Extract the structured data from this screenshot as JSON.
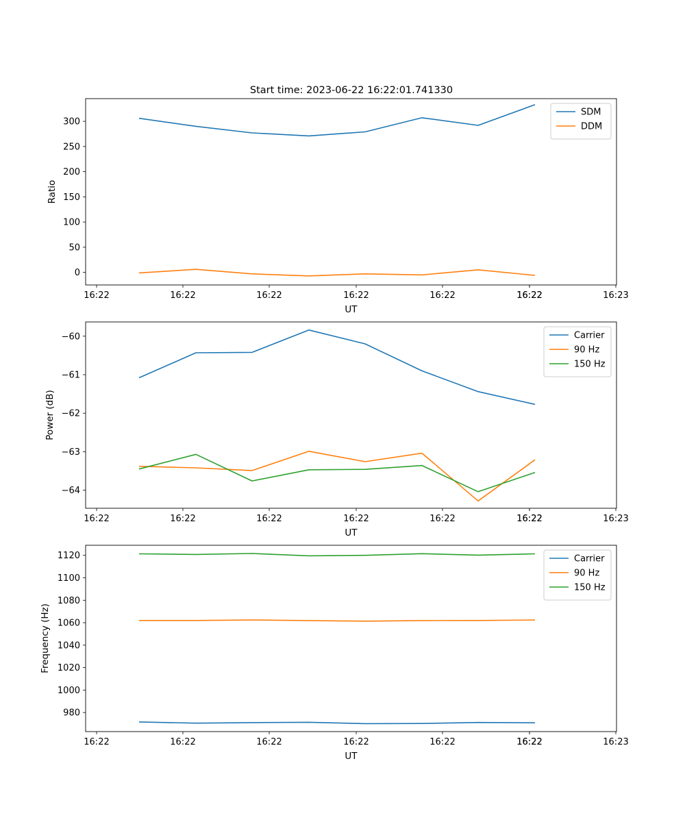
{
  "figure_title": "Start time: 2023-06-22 16:22:01.741330",
  "colors": {
    "blue": "#1f77b4",
    "orange": "#ff7f0e",
    "green": "#2ca02c"
  },
  "chart_data": [
    {
      "type": "line",
      "title": "Start time: 2023-06-22 16:22:01.741330",
      "xlabel": "UT",
      "ylabel": "Ratio",
      "x_tick_labels": [
        "16:22",
        "16:22",
        "16:22",
        "16:22",
        "16:22",
        "16:22",
        "16:22",
        "16:23"
      ],
      "y_ticks": [
        0,
        50,
        100,
        150,
        200,
        250,
        300
      ],
      "ylim": [
        -25,
        345
      ],
      "legend_position": "upper right",
      "grid": false,
      "series": [
        {
          "name": "SDM",
          "color": "#1f77b4",
          "values": [
            306,
            290,
            277,
            271,
            279,
            307,
            292,
            333
          ]
        },
        {
          "name": "DDM",
          "color": "#ff7f0e",
          "values": [
            -1,
            6,
            -3,
            -7,
            -3,
            -5,
            5,
            -6
          ]
        }
      ]
    },
    {
      "type": "line",
      "title": "",
      "xlabel": "UT",
      "ylabel": "Power (dB)",
      "x_tick_labels": [
        "16:22",
        "16:22",
        "16:22",
        "16:22",
        "16:22",
        "16:22",
        "16:22",
        "16:23"
      ],
      "y_ticks": [
        -64,
        -63,
        -62,
        -61,
        -60
      ],
      "ylim": [
        -64.47,
        -59.63
      ],
      "legend_position": "upper right",
      "grid": false,
      "series": [
        {
          "name": "Carrier",
          "color": "#1f77b4",
          "values": [
            -61.08,
            -60.43,
            -60.42,
            -59.84,
            -60.2,
            -60.9,
            -61.44,
            -61.77
          ]
        },
        {
          "name": "90 Hz",
          "color": "#ff7f0e",
          "values": [
            -63.38,
            -63.42,
            -63.49,
            -62.99,
            -63.26,
            -63.04,
            -64.28,
            -63.21
          ]
        },
        {
          "name": "150 Hz",
          "color": "#2ca02c",
          "values": [
            -63.45,
            -63.07,
            -63.76,
            -63.47,
            -63.46,
            -63.36,
            -64.04,
            -63.54
          ]
        }
      ]
    },
    {
      "type": "line",
      "title": "",
      "xlabel": "UT",
      "ylabel": "Frequency (Hz)",
      "x_tick_labels": [
        "16:22",
        "16:22",
        "16:22",
        "16:22",
        "16:22",
        "16:22",
        "16:22",
        "16:23"
      ],
      "y_ticks": [
        980,
        1000,
        1020,
        1040,
        1060,
        1080,
        1100,
        1120
      ],
      "ylim": [
        963,
        1129
      ],
      "legend_position": "upper right",
      "grid": false,
      "series": [
        {
          "name": "Carrier",
          "color": "#1f77b4",
          "values": [
            971.6,
            970.5,
            971.0,
            971.3,
            970.1,
            970.2,
            971.1,
            970.8
          ]
        },
        {
          "name": "90 Hz",
          "color": "#ff7f0e",
          "values": [
            1062.0,
            1062.0,
            1062.4,
            1061.9,
            1061.4,
            1061.9,
            1062.0,
            1062.4
          ]
        },
        {
          "name": "150 Hz",
          "color": "#2ca02c",
          "values": [
            1121.4,
            1120.8,
            1121.7,
            1119.6,
            1120.0,
            1121.5,
            1120.2,
            1121.4
          ]
        }
      ]
    }
  ]
}
